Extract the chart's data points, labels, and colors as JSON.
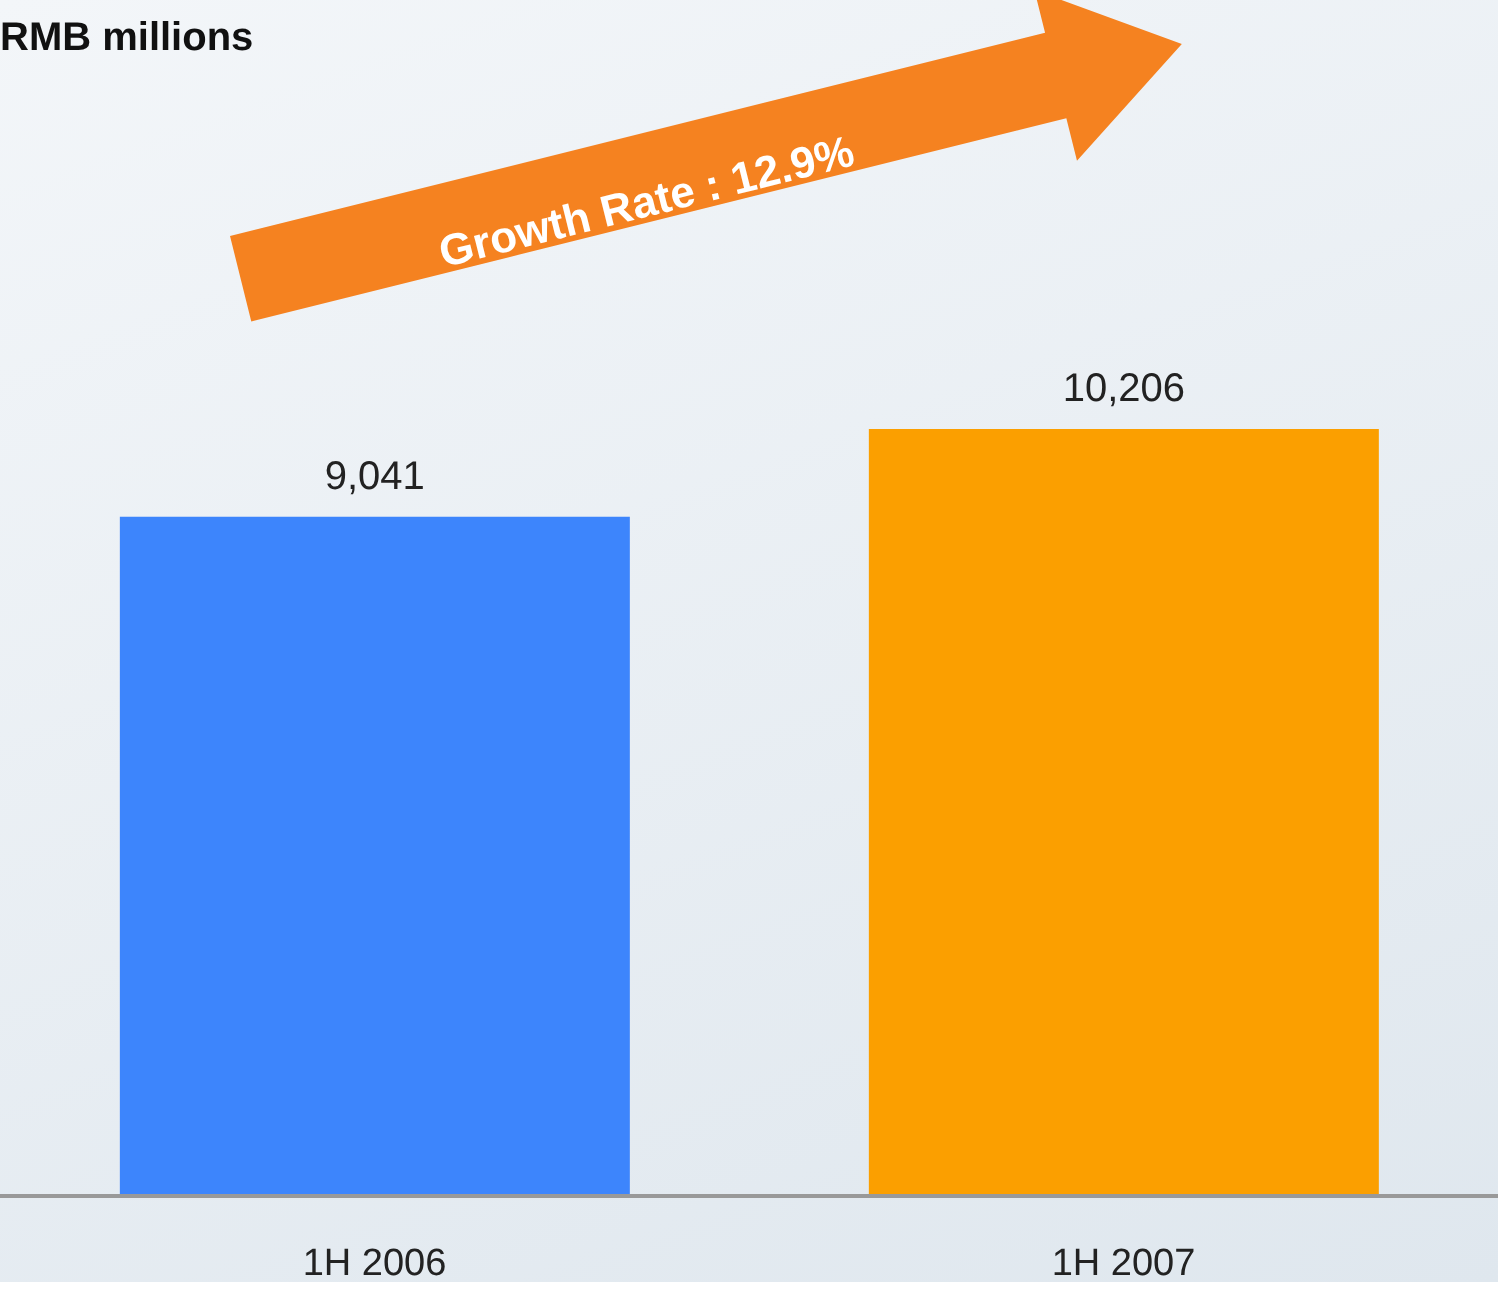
{
  "chart_data": {
    "type": "bar",
    "title": "RMB millions",
    "categories": [
      "1H 2006",
      "1H 2007"
    ],
    "values": [
      9041,
      10206
    ],
    "value_labels": [
      "9,041",
      "10,206"
    ],
    "colors": [
      "#3d85fc",
      "#fb9f00"
    ],
    "tick_labels": "x",
    "annotations": [
      "Growth Rate : 12.9%"
    ]
  }
}
